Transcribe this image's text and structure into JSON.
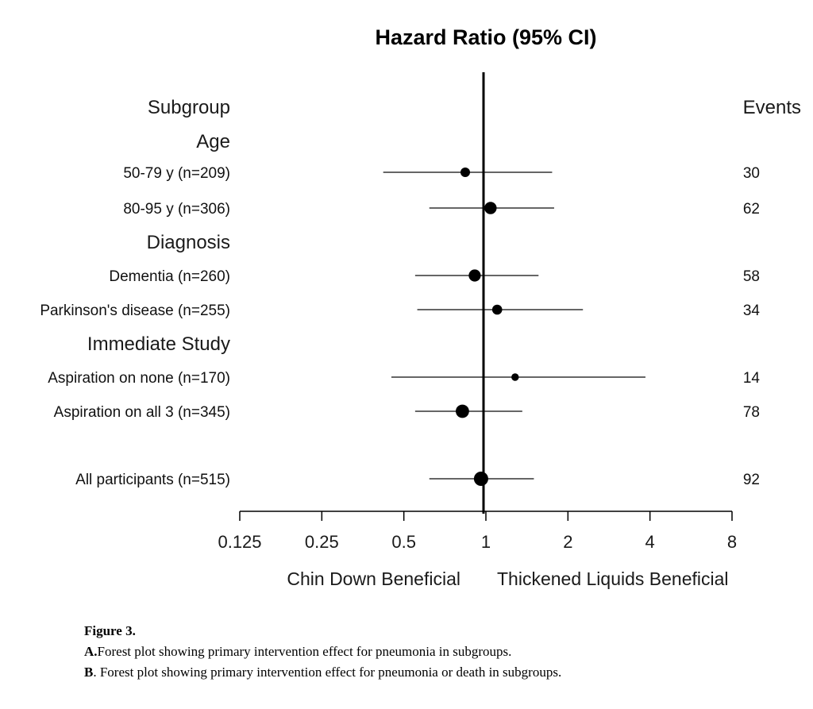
{
  "chart_data": {
    "type": "forest",
    "title": "Hazard Ratio (95% CI)",
    "left_column_header": "Subgroup",
    "right_column_header": "Events",
    "x_scale": "log2",
    "xlim": [
      0.125,
      8
    ],
    "x_ticks": [
      "0.125",
      "0.25",
      "0.5",
      "1",
      "2",
      "4",
      "8"
    ],
    "reference_line": 1,
    "favors_left_label": "Chin Down Beneficial",
    "favors_right_label": "Thickened Liquids Beneficial",
    "rows": [
      {
        "kind": "group",
        "label": "Age"
      },
      {
        "kind": "estimate",
        "label": "50-79 y (n=209)",
        "hr": 0.84,
        "lo": 0.42,
        "hi": 1.75,
        "events": "30"
      },
      {
        "kind": "estimate",
        "label": "80-95 y (n=306)",
        "hr": 1.04,
        "lo": 0.62,
        "hi": 1.78,
        "events": "62"
      },
      {
        "kind": "group",
        "label": "Diagnosis"
      },
      {
        "kind": "estimate",
        "label": "Dementia (n=260)",
        "hr": 0.91,
        "lo": 0.55,
        "hi": 1.56,
        "events": "58"
      },
      {
        "kind": "estimate",
        "label": "Parkinson's disease (n=255)",
        "hr": 1.1,
        "lo": 0.56,
        "hi": 2.27,
        "events": "34"
      },
      {
        "kind": "group",
        "label": "Immediate Study"
      },
      {
        "kind": "estimate",
        "label": "Aspiration on none (n=170)",
        "hr": 1.28,
        "lo": 0.45,
        "hi": 3.85,
        "events": "14"
      },
      {
        "kind": "estimate",
        "label": "Aspiration on all 3 (n=345)",
        "hr": 0.82,
        "lo": 0.55,
        "hi": 1.36,
        "events": "78"
      },
      {
        "kind": "estimate",
        "label": "All participants (n=515)",
        "hr": 0.96,
        "lo": 0.62,
        "hi": 1.5,
        "events": "92"
      }
    ]
  },
  "caption": {
    "figure_label": "Figure 3.",
    "line_a_prefix": "A.",
    "line_a_text": "Forest plot showing primary intervention effect for pneumonia in subgroups.",
    "line_b_prefix": "B",
    "line_b_text": ". Forest plot showing primary intervention effect for pneumonia or death in subgroups."
  }
}
